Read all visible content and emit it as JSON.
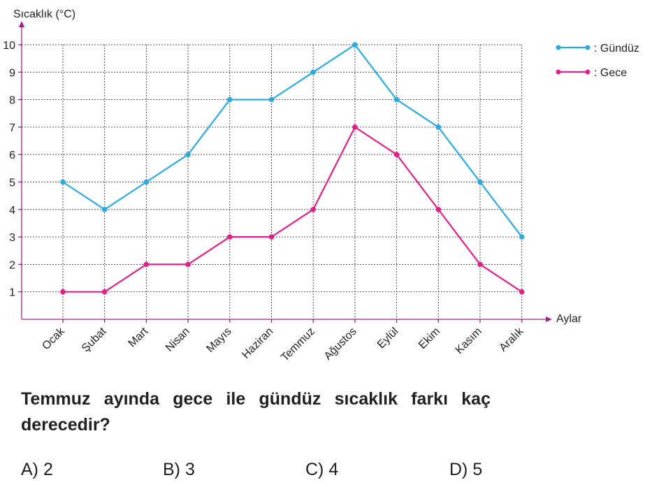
{
  "chart_data": {
    "type": "line",
    "ylabel": "Sıcaklık (°C)",
    "xlabel": "Aylar",
    "categories": [
      "Ocak",
      "Şubat",
      "Mart",
      "Nisan",
      "Mayıs",
      "Haziran",
      "Temmuz",
      "Ağustos",
      "Eylül",
      "Ekim",
      "Kasım",
      "Aralık"
    ],
    "yticks": [
      "1",
      "2",
      "3",
      "4",
      "5",
      "6",
      "7",
      "8",
      "9",
      "10"
    ],
    "ylim": [
      0,
      10
    ],
    "grid": true,
    "legend_position": "top-right",
    "axis_color": "#a0208a",
    "series": [
      {
        "name": ": Gündüz",
        "color": "#29abe2",
        "values": [
          5,
          4,
          5,
          6,
          8,
          8,
          9,
          10,
          8,
          7,
          5,
          3
        ]
      },
      {
        "name": ": Gece",
        "color": "#e0218a",
        "values": [
          1,
          1,
          2,
          2,
          3,
          3,
          4,
          7,
          6,
          4,
          2,
          1
        ]
      }
    ]
  },
  "question": {
    "text": "Temmuz ayında gece ile gündüz sıcaklık farkı kaç derecedir?",
    "options": [
      "A) 2",
      "B) 3",
      "C) 4",
      "D) 5"
    ]
  }
}
